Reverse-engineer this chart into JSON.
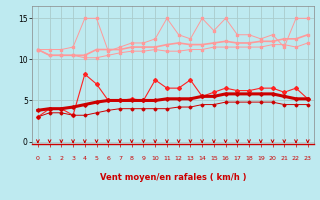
{
  "x": [
    0,
    1,
    2,
    3,
    4,
    5,
    6,
    7,
    8,
    9,
    10,
    11,
    12,
    13,
    14,
    15,
    16,
    17,
    18,
    19,
    20,
    21,
    22,
    23
  ],
  "line1_upper_spike": [
    11.2,
    11.2,
    11.2,
    11.5,
    15.0,
    15.0,
    11.0,
    11.5,
    12.0,
    12.0,
    12.5,
    15.0,
    13.0,
    12.5,
    15.0,
    13.5,
    15.0,
    13.0,
    13.0,
    12.5,
    13.0,
    11.5,
    15.0,
    15.0
  ],
  "line2_upper_mid": [
    11.2,
    10.5,
    10.5,
    10.5,
    10.5,
    11.2,
    11.2,
    11.2,
    11.5,
    11.5,
    11.5,
    11.8,
    12.0,
    11.8,
    11.8,
    12.0,
    12.2,
    12.0,
    12.0,
    12.2,
    12.2,
    12.5,
    12.5,
    13.0
  ],
  "line3_upper_low": [
    11.2,
    10.5,
    10.5,
    10.5,
    10.2,
    10.2,
    10.5,
    10.8,
    11.0,
    11.0,
    11.2,
    11.0,
    11.0,
    11.2,
    11.2,
    11.5,
    11.5,
    11.5,
    11.5,
    11.5,
    11.8,
    11.8,
    11.5,
    12.0
  ],
  "line4_lower_spike": [
    3.0,
    4.0,
    4.0,
    3.2,
    8.2,
    7.0,
    5.0,
    5.0,
    5.2,
    5.0,
    7.5,
    6.5,
    6.5,
    7.5,
    5.5,
    6.0,
    6.5,
    6.2,
    6.2,
    6.5,
    6.5,
    6.0,
    6.5,
    5.2
  ],
  "line5_lower_mid": [
    3.8,
    4.0,
    4.0,
    4.2,
    4.5,
    4.8,
    5.0,
    5.0,
    5.0,
    5.0,
    5.0,
    5.2,
    5.2,
    5.2,
    5.5,
    5.5,
    5.8,
    5.8,
    5.8,
    5.8,
    5.8,
    5.5,
    5.2,
    5.2
  ],
  "line6_lower_low": [
    3.0,
    3.5,
    3.5,
    3.2,
    3.2,
    3.5,
    3.8,
    4.0,
    4.0,
    4.0,
    4.0,
    4.0,
    4.2,
    4.2,
    4.5,
    4.5,
    4.8,
    4.8,
    4.8,
    4.8,
    4.8,
    4.5,
    4.5,
    4.5
  ],
  "xlabel": "Vent moyen/en rafales ( km/h )",
  "yticks": [
    0,
    5,
    10,
    15
  ],
  "xticks": [
    0,
    1,
    2,
    3,
    4,
    5,
    6,
    7,
    8,
    9,
    10,
    11,
    12,
    13,
    14,
    15,
    16,
    17,
    18,
    19,
    20,
    21,
    22,
    23
  ],
  "bg_color": "#beeaf0",
  "line_color_upper": "#ff9999",
  "line_color_lower_spike": "#ff2222",
  "line_color_lower_mid": "#cc0000",
  "line_color_lower_low": "#cc0000",
  "grid_color": "#aacccc",
  "xlabel_color": "#cc0000",
  "arrow_color": "#cc0000",
  "ylim": [
    -0.3,
    16.5
  ],
  "xlim": [
    -0.5,
    23.5
  ]
}
